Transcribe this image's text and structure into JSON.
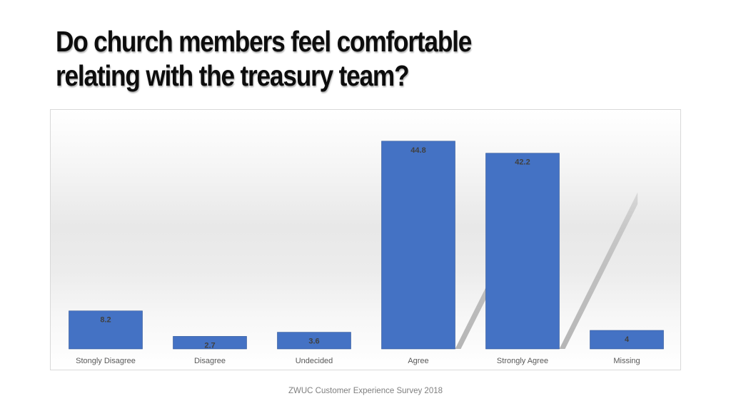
{
  "slide": {
    "title_line1": "Do church members feel comfortable",
    "title_line2": "relating with the treasury team?",
    "footer": "ZWUC Customer Experience Survey 2018"
  },
  "colors": {
    "bar": "#4472C4",
    "bar_dark": "#2F5597",
    "label_text": "#404040",
    "axis_text": "#595959"
  },
  "chart_data": {
    "type": "bar",
    "categories": [
      "Stongly Disagree",
      "Disagree",
      "Undecided",
      "Agree",
      "Strongly Agree",
      "Missing"
    ],
    "values": [
      8.2,
      2.7,
      3.6,
      44.8,
      42.2,
      4
    ],
    "value_labels": [
      "8.2",
      "2.7",
      "3.6",
      "44.8",
      "42.2",
      "4"
    ],
    "title": "",
    "xlabel": "",
    "ylabel": "",
    "ylim": [
      0,
      50
    ],
    "grid": false,
    "legend": "none",
    "data_labels": "inside-top"
  }
}
